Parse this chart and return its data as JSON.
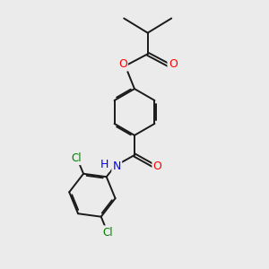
{
  "background_color": "#ebebeb",
  "atom_colors": {
    "O": "#ff0000",
    "N": "#0000ff",
    "Cl": "#008000"
  },
  "bond_color": "#1a1a1a",
  "bond_lw": 1.4,
  "dbo": 0.055,
  "figsize": [
    3.0,
    3.0
  ],
  "dpi": 100,
  "xlim": [
    0,
    10
  ],
  "ylim": [
    0,
    10
  ]
}
